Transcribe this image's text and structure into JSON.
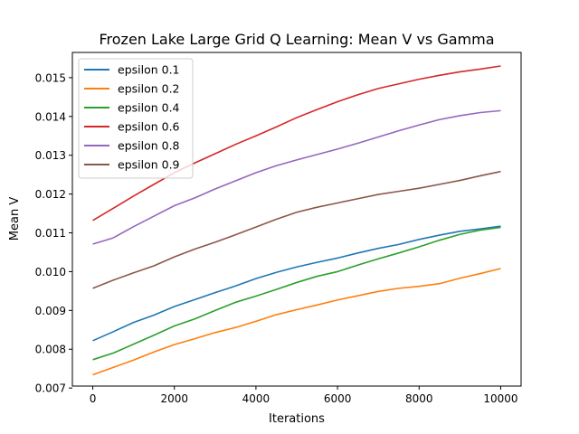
{
  "chart_data": {
    "type": "line",
    "title": "Frozen Lake Large Grid Q Learning: Mean V vs Gamma",
    "xlabel": "Iterations",
    "ylabel": "Mean V",
    "xlim": [
      -500,
      10500
    ],
    "ylim": [
      0.00705,
      0.01565
    ],
    "x_ticks": [
      0,
      2000,
      4000,
      6000,
      8000,
      10000
    ],
    "y_ticks": [
      0.007,
      0.008,
      0.009,
      0.01,
      0.011,
      0.012,
      0.013,
      0.014,
      0.015
    ],
    "y_tick_labels": [
      "0.007",
      "0.008",
      "0.009",
      "0.010",
      "0.011",
      "0.012",
      "0.013",
      "0.014",
      "0.015"
    ],
    "grid": false,
    "legend_position": "upper-left",
    "x": [
      0,
      500,
      1000,
      1500,
      2000,
      2500,
      3000,
      3500,
      4000,
      4500,
      5000,
      5500,
      6000,
      6500,
      7000,
      7500,
      8000,
      8500,
      9000,
      9500,
      10000
    ],
    "series": [
      {
        "name": "epsilon 0.1",
        "color": "#1f77b4",
        "values": [
          0.00822,
          0.00845,
          0.00869,
          0.00888,
          0.0091,
          0.00928,
          0.00946,
          0.00963,
          0.00982,
          0.00998,
          0.01012,
          0.01024,
          0.01035,
          0.01048,
          0.0106,
          0.0107,
          0.01083,
          0.01094,
          0.01104,
          0.0111,
          0.01117
        ]
      },
      {
        "name": "epsilon 0.2",
        "color": "#ff7f0e",
        "values": [
          0.00734,
          0.00753,
          0.00772,
          0.00793,
          0.00812,
          0.00827,
          0.00843,
          0.00856,
          0.00872,
          0.00889,
          0.00902,
          0.00914,
          0.00927,
          0.00938,
          0.00949,
          0.00957,
          0.00962,
          0.00969,
          0.00983,
          0.00995,
          0.01008
        ]
      },
      {
        "name": "epsilon 0.4",
        "color": "#2ca02c",
        "values": [
          0.00773,
          0.0079,
          0.00813,
          0.00836,
          0.0086,
          0.00878,
          0.009,
          0.00921,
          0.00937,
          0.00954,
          0.00972,
          0.00988,
          0.01,
          0.01017,
          0.01033,
          0.01048,
          0.01064,
          0.01081,
          0.01096,
          0.01107,
          0.01114
        ]
      },
      {
        "name": "epsilon 0.6",
        "color": "#d62728",
        "values": [
          0.01132,
          0.01163,
          0.01195,
          0.01225,
          0.01255,
          0.0128,
          0.01304,
          0.01328,
          0.0135,
          0.01373,
          0.01397,
          0.01418,
          0.01438,
          0.01456,
          0.01472,
          0.01484,
          0.01496,
          0.01506,
          0.01515,
          0.01522,
          0.0153
        ]
      },
      {
        "name": "epsilon 0.8",
        "color": "#9467bd",
        "values": [
          0.01071,
          0.01087,
          0.01116,
          0.01143,
          0.0117,
          0.0119,
          0.01213,
          0.01234,
          0.01255,
          0.01273,
          0.01288,
          0.01302,
          0.01316,
          0.01331,
          0.01347,
          0.01363,
          0.01378,
          0.01392,
          0.01402,
          0.0141,
          0.01415
        ]
      },
      {
        "name": "epsilon 0.9",
        "color": "#8c564b",
        "values": [
          0.00957,
          0.00978,
          0.00997,
          0.01015,
          0.01038,
          0.01058,
          0.01076,
          0.01095,
          0.01115,
          0.01135,
          0.01153,
          0.01166,
          0.01177,
          0.01188,
          0.01199,
          0.01207,
          0.01215,
          0.01225,
          0.01235,
          0.01247,
          0.01258
        ]
      }
    ]
  }
}
